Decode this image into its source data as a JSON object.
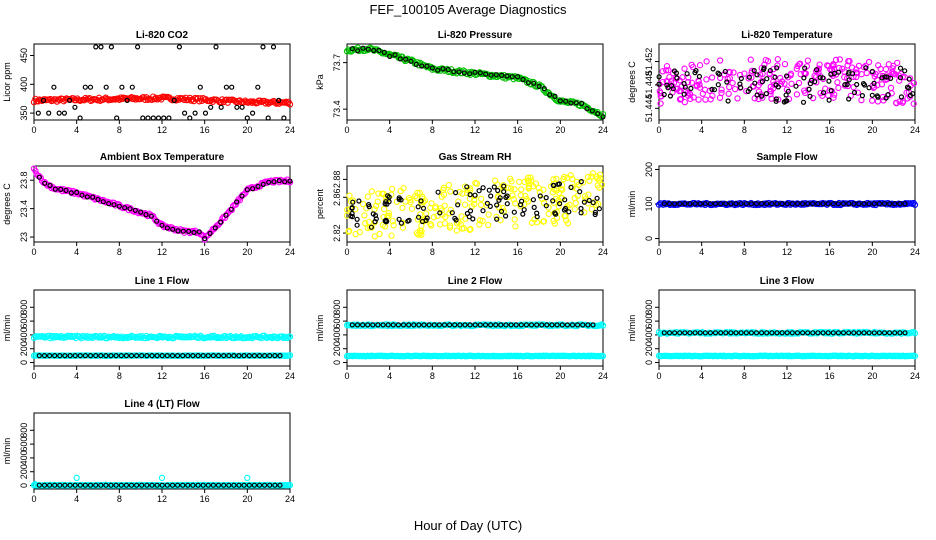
{
  "figure": {
    "title": "FEF_100105  Average Diagnostics",
    "xlabel": "Hour of Day (UTC)"
  },
  "colors": {
    "axis": "#000000",
    "co2": "#ff0000",
    "pressure": "#00c000",
    "temperature": "#ff00ff",
    "rh": "#ffff00",
    "sample_flow": "#0000ff",
    "line_flow": "#00ffff",
    "average_marker": "#000000"
  },
  "chart_data": [
    {
      "id": "co2",
      "type": "scatter",
      "title": "Li-820 CO2",
      "ylabel": "Licor ppm",
      "xlim": [
        0,
        24
      ],
      "ylim": [
        338,
        470
      ],
      "xticks": [
        0,
        4,
        8,
        12,
        16,
        20,
        24
      ],
      "yticks": [
        350,
        400,
        450
      ],
      "series": [
        {
          "name": "raw",
          "color_key": "co2",
          "pattern": "band",
          "x_range": [
            0,
            24
          ],
          "profile": [
            [
              0,
              372
            ],
            [
              6,
              374
            ],
            [
              12,
              376
            ],
            [
              16,
              373
            ],
            [
              20,
              369
            ],
            [
              24,
              368
            ]
          ],
          "spread": 3
        },
        {
          "name": "hourly",
          "color_key": "average_marker",
          "pattern": "levels",
          "levels": [
            338,
            350,
            360,
            372,
            395,
            465
          ]
        }
      ]
    },
    {
      "id": "pressure",
      "type": "scatter",
      "title": "Li-820 Pressure",
      "ylabel": "kPa",
      "xlim": [
        0,
        24
      ],
      "ylim": [
        73.33,
        73.82
      ],
      "xticks": [
        0,
        4,
        8,
        12,
        16,
        20,
        24
      ],
      "yticks": [
        73.4,
        73.7
      ],
      "series": [
        {
          "name": "raw",
          "color_key": "pressure",
          "pattern": "band",
          "x_range": [
            0,
            24
          ],
          "profile": [
            [
              0,
              73.78
            ],
            [
              2,
              73.79
            ],
            [
              6,
              73.71
            ],
            [
              8,
              73.66
            ],
            [
              12,
              73.63
            ],
            [
              16,
              73.6
            ],
            [
              18,
              73.55
            ],
            [
              20,
              73.45
            ],
            [
              22,
              73.43
            ],
            [
              24,
              73.36
            ]
          ],
          "spread": 0.012
        },
        {
          "name": "hourly",
          "color_key": "average_marker",
          "pattern": "follow",
          "spread": 0.01
        }
      ]
    },
    {
      "id": "temperature",
      "type": "scatter",
      "title": "Li-820 Temperature",
      "ylabel": "degrees C",
      "xlim": [
        0,
        24
      ],
      "ylim": [
        51.442,
        51.455
      ],
      "xticks": [
        0,
        4,
        8,
        12,
        16,
        20,
        24
      ],
      "yticks": [
        51.444,
        51.448,
        51.452
      ],
      "series": [
        {
          "name": "raw",
          "color_key": "temperature",
          "pattern": "noise",
          "x_range": [
            0,
            24
          ],
          "profile": [
            [
              0,
              51.448
            ],
            [
              6,
              51.449
            ],
            [
              12,
              51.449
            ],
            [
              18,
              51.449
            ],
            [
              24,
              51.448
            ]
          ],
          "spread": 0.0035
        },
        {
          "name": "hourly",
          "color_key": "average_marker",
          "pattern": "noise",
          "x_range": [
            0,
            24
          ],
          "profile": [
            [
              0,
              51.448
            ],
            [
              24,
              51.448
            ]
          ],
          "spread": 0.003
        }
      ]
    },
    {
      "id": "ambient",
      "type": "scatter",
      "title": "Ambient Box Temperature",
      "ylabel": "degrees C",
      "xlim": [
        0,
        24
      ],
      "ylim": [
        22.93,
        24.0
      ],
      "xticks": [
        0,
        4,
        8,
        12,
        16,
        20,
        24
      ],
      "yticks": [
        23.0,
        23.4,
        23.8
      ],
      "series": [
        {
          "name": "raw",
          "color_key": "temperature",
          "pattern": "band",
          "x_range": [
            0,
            24
          ],
          "profile": [
            [
              0,
              23.95
            ],
            [
              1,
              23.76
            ],
            [
              2,
              23.68
            ],
            [
              4,
              23.62
            ],
            [
              8,
              23.44
            ],
            [
              11,
              23.3
            ],
            [
              12,
              23.16
            ],
            [
              14,
              23.08
            ],
            [
              15.5,
              23.07
            ],
            [
              16,
              22.98
            ],
            [
              18,
              23.3
            ],
            [
              20,
              23.66
            ],
            [
              22,
              23.78
            ],
            [
              24,
              23.79
            ]
          ],
          "spread": 0.02
        },
        {
          "name": "hourly",
          "color_key": "average_marker",
          "pattern": "follow",
          "spread": 0.015
        }
      ]
    },
    {
      "id": "rh",
      "type": "scatter",
      "title": "Gas Stream RH",
      "ylabel": "percent",
      "xlim": [
        0,
        24
      ],
      "ylim": [
        2.81,
        2.895
      ],
      "xticks": [
        0,
        4,
        8,
        12,
        16,
        20,
        24
      ],
      "yticks": [
        2.82,
        2.86,
        2.88
      ],
      "series": [
        {
          "name": "raw",
          "color_key": "rh",
          "pattern": "noise",
          "x_range": [
            0,
            24
          ],
          "profile": [
            [
              0,
              2.84
            ],
            [
              12,
              2.85
            ],
            [
              24,
              2.862
            ]
          ],
          "spread": 0.028
        },
        {
          "name": "hourly",
          "color_key": "average_marker",
          "pattern": "noise",
          "x_range": [
            0,
            24
          ],
          "profile": [
            [
              0,
              2.845
            ],
            [
              24,
              2.86
            ]
          ],
          "spread": 0.02
        }
      ]
    },
    {
      "id": "sample_flow",
      "type": "scatter",
      "title": "Sample Flow",
      "ylabel": "ml/min",
      "xlim": [
        0,
        24
      ],
      "ylim": [
        -10,
        210
      ],
      "xticks": [
        0,
        4,
        8,
        12,
        16,
        20,
        24
      ],
      "yticks": [
        0,
        100,
        200
      ],
      "series": [
        {
          "name": "raw",
          "color_key": "sample_flow",
          "pattern": "band",
          "x_range": [
            0,
            24
          ],
          "profile": [
            [
              0,
              100
            ],
            [
              24,
              100
            ]
          ],
          "spread": 3
        },
        {
          "name": "hourly",
          "color_key": "average_marker",
          "pattern": "flat",
          "value": 101
        }
      ]
    },
    {
      "id": "line1",
      "type": "scatter",
      "title": "Line 1 Flow",
      "ylabel": "ml/min",
      "xlim": [
        0,
        24
      ],
      "ylim": [
        -50,
        1050
      ],
      "xticks": [
        0,
        4,
        8,
        12,
        16,
        20,
        24
      ],
      "yticks": [
        0,
        200,
        400,
        600,
        800
      ],
      "series": [
        {
          "name": "raw",
          "color_key": "line_flow",
          "pattern": "band",
          "x_range": [
            0,
            24
          ],
          "profile": [
            [
              0,
              370
            ],
            [
              24,
              370
            ]
          ],
          "spread": 18
        },
        {
          "name": "raw_low",
          "color_key": "line_flow",
          "pattern": "band",
          "x_range": [
            0,
            24
          ],
          "profile": [
            [
              0,
              100
            ],
            [
              24,
              100
            ]
          ],
          "spread": 4
        },
        {
          "name": "hourly",
          "color_key": "average_marker",
          "pattern": "flat",
          "value": 100
        }
      ]
    },
    {
      "id": "line2",
      "type": "scatter",
      "title": "Line 2 Flow",
      "ylabel": "ml/min",
      "xlim": [
        0,
        24
      ],
      "ylim": [
        -50,
        1050
      ],
      "xticks": [
        0,
        4,
        8,
        12,
        16,
        20,
        24
      ],
      "yticks": [
        0,
        200,
        400,
        600,
        800
      ],
      "series": [
        {
          "name": "raw",
          "color_key": "line_flow",
          "pattern": "band",
          "x_range": [
            0,
            24
          ],
          "profile": [
            [
              0,
              540
            ],
            [
              24,
              540
            ]
          ],
          "spread": 12
        },
        {
          "name": "raw_low",
          "color_key": "line_flow",
          "pattern": "band",
          "x_range": [
            0,
            24
          ],
          "profile": [
            [
              0,
              95
            ],
            [
              24,
              95
            ]
          ],
          "spread": 4
        },
        {
          "name": "hourly",
          "color_key": "average_marker",
          "pattern": "flat",
          "value": 545
        }
      ]
    },
    {
      "id": "line3",
      "type": "scatter",
      "title": "Line 3 Flow",
      "ylabel": "ml/min",
      "xlim": [
        0,
        24
      ],
      "ylim": [
        -50,
        1050
      ],
      "xticks": [
        0,
        4,
        8,
        12,
        16,
        20,
        24
      ],
      "yticks": [
        0,
        200,
        400,
        600,
        800
      ],
      "series": [
        {
          "name": "raw",
          "color_key": "line_flow",
          "pattern": "band",
          "x_range": [
            0,
            24
          ],
          "profile": [
            [
              0,
              430
            ],
            [
              24,
              430
            ]
          ],
          "spread": 12
        },
        {
          "name": "raw_low",
          "color_key": "line_flow",
          "pattern": "band",
          "x_range": [
            0,
            24
          ],
          "profile": [
            [
              0,
              95
            ],
            [
              24,
              95
            ]
          ],
          "spread": 4
        },
        {
          "name": "hourly",
          "color_key": "average_marker",
          "pattern": "flat",
          "value": 430
        }
      ]
    },
    {
      "id": "line4",
      "type": "scatter",
      "title": "Line 4 (LT) Flow",
      "ylabel": "ml/min",
      "xlim": [
        0,
        24
      ],
      "ylim": [
        -50,
        1050
      ],
      "xticks": [
        0,
        4,
        8,
        12,
        16,
        20,
        24
      ],
      "yticks": [
        0,
        200,
        400,
        600,
        800
      ],
      "series": [
        {
          "name": "raw",
          "color_key": "line_flow",
          "pattern": "band",
          "x_range": [
            0,
            24
          ],
          "profile": [
            [
              0,
              5
            ],
            [
              24,
              5
            ]
          ],
          "spread": 4
        },
        {
          "name": "spikes",
          "color_key": "line_flow",
          "pattern": "points",
          "points": [
            [
              0.1,
              20
            ],
            [
              4,
              110
            ],
            [
              12,
              110
            ],
            [
              20,
              110
            ]
          ]
        },
        {
          "name": "hourly",
          "color_key": "average_marker",
          "pattern": "flat",
          "value": 5
        }
      ]
    }
  ]
}
